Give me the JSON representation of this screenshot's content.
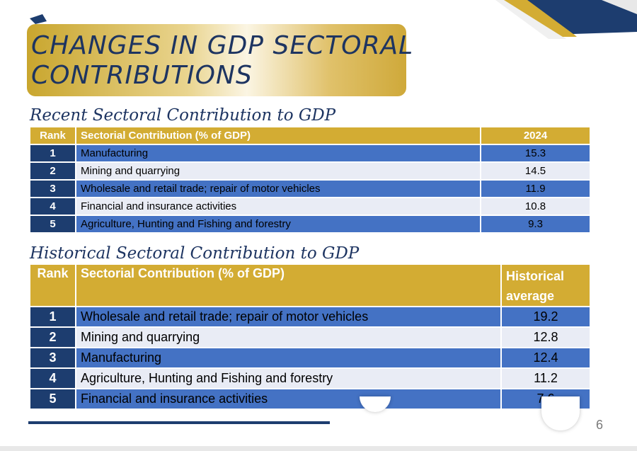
{
  "title": "CHANGES IN GDP SECTORAL CONTRIBUTIONS",
  "recent": {
    "heading": "Recent Sectoral Contribution to GDP",
    "columns": {
      "rank": "Rank",
      "sector": "Sectorial Contribution (% of GDP)",
      "value": "2024"
    },
    "rows": [
      {
        "rank": "1",
        "sector": "Manufacturing",
        "value": "15.3"
      },
      {
        "rank": "2",
        "sector": "Mining and quarrying",
        "value": "14.5"
      },
      {
        "rank": "3",
        "sector": "Wholesale and retail trade; repair of motor vehicles",
        "value": "11.9"
      },
      {
        "rank": "4",
        "sector": "Financial and insurance activities",
        "value": "10.8"
      },
      {
        "rank": "5",
        "sector": "Agriculture, Hunting and Fishing and forestry",
        "value": "9.3"
      }
    ]
  },
  "historical": {
    "heading": "Historical Sectoral Contribution to GDP",
    "columns": {
      "rank": "Rank",
      "sector": "Sectorial Contribution (% of GDP)",
      "value": "Historical average"
    },
    "rows": [
      {
        "rank": "1",
        "sector": "Wholesale and retail trade; repair of motor vehicles",
        "value": "19.2"
      },
      {
        "rank": "2",
        "sector": "Mining and quarrying",
        "value": "12.8"
      },
      {
        "rank": "3",
        "sector": "Manufacturing",
        "value": "12.4"
      },
      {
        "rank": "4",
        "sector": "Agriculture, Hunting and Fishing and forestry",
        "value": "11.2"
      },
      {
        "rank": "5",
        "sector": "Financial and insurance activities",
        "value": "7.6"
      }
    ]
  },
  "page_number": "6",
  "colors": {
    "navy": "#1d3d6f",
    "gold": "#d3ac33",
    "blue_row": "#4472c4",
    "light_row": "#e9ecf5"
  }
}
